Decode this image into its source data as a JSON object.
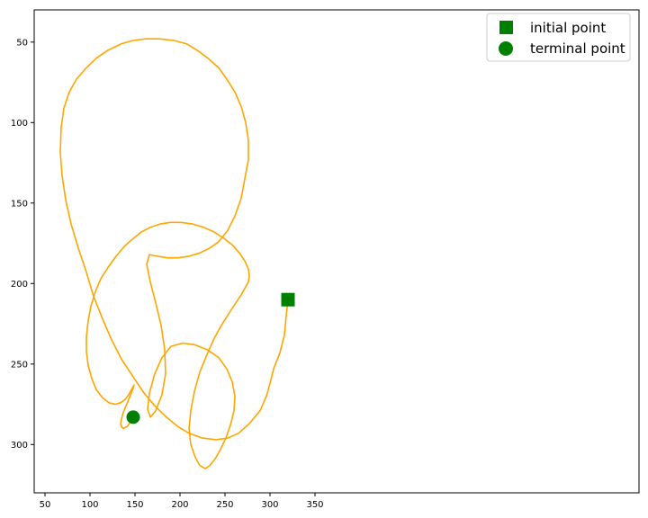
{
  "chart_data": {
    "type": "line",
    "title": "",
    "xlabel": "",
    "ylabel": "",
    "xlim": [
      38,
      710
    ],
    "ylim": [
      330,
      30
    ],
    "y_inverted": true,
    "x_ticks": [
      50,
      100,
      150,
      200,
      250,
      300,
      350
    ],
    "y_ticks": [
      50,
      100,
      150,
      200,
      250,
      300
    ],
    "grid": false,
    "legend_position": "top-right",
    "colors": {
      "trajectory": "#ffa500",
      "markers": "#008000"
    },
    "series": [
      {
        "name": "",
        "type": "line",
        "x": [
          320,
          318,
          316,
          311,
          304,
          300,
          296,
          289,
          277,
          265,
          253,
          240,
          225,
          210,
          198,
          185,
          172,
          160,
          148,
          135,
          124,
          114,
          104,
          96,
          87,
          79,
          73,
          69,
          67,
          68,
          71,
          77,
          85,
          96,
          107,
          120,
          135,
          148,
          162,
          177,
          193,
          207,
          219,
          231,
          243,
          252,
          261,
          268,
          273,
          276,
          276,
          272,
          268,
          261,
          253,
          243,
          233,
          222,
          210,
          198,
          186,
          175,
          166,
          163,
          167,
          173,
          179,
          183,
          184,
          180,
          173,
          167,
          164,
          166,
          172,
          180,
          190,
          203,
          216,
          230,
          243,
          252,
          258,
          261,
          260,
          256,
          251,
          245,
          239,
          233,
          228,
          222,
          217,
          212,
          210,
          212,
          216,
          222,
          230,
          238,
          247,
          255,
          262,
          268,
          272,
          276,
          277,
          276,
          272,
          266,
          258,
          249,
          238,
          226,
          214,
          201,
          189,
          178,
          167,
          157,
          148,
          138,
          129,
          120,
          112,
          106,
          101,
          98,
          96,
          96,
          98,
          102,
          107,
          114,
          121,
          128,
          134,
          139,
          143,
          146,
          148,
          149,
          148,
          146,
          143,
          140,
          137,
          135,
          134,
          135,
          137,
          141,
          145,
          148
        ],
        "y": [
          210,
          220,
          232,
          243,
          253,
          262,
          270,
          279,
          287,
          293,
          296,
          297,
          296,
          293,
          289,
          283,
          276,
          268,
          258,
          247,
          235,
          222,
          208,
          193,
          178,
          163,
          148,
          133,
          118,
          103,
          91,
          81,
          73,
          66,
          60,
          55,
          51,
          49,
          48,
          48,
          49,
          51,
          55,
          60,
          66,
          73,
          81,
          90,
          100,
          111,
          123,
          135,
          147,
          158,
          167,
          174,
          178,
          181,
          183,
          184,
          184,
          183,
          182,
          188,
          199,
          212,
          226,
          241,
          256,
          269,
          279,
          283,
          278,
          268,
          256,
          246,
          239,
          237,
          238,
          241,
          246,
          253,
          261,
          270,
          279,
          288,
          296,
          303,
          309,
          313,
          315,
          313,
          308,
          300,
          290,
          279,
          267,
          255,
          244,
          234,
          225,
          218,
          212,
          207,
          203,
          199,
          195,
          191,
          186,
          181,
          176,
          172,
          168,
          165,
          163,
          162,
          162,
          163,
          165,
          168,
          172,
          177,
          183,
          190,
          197,
          205,
          214,
          223,
          233,
          242,
          251,
          259,
          266,
          271,
          274,
          275,
          274,
          272,
          269,
          266,
          264,
          263,
          265,
          268,
          272,
          276,
          280,
          284,
          287,
          289,
          290,
          289,
          286,
          283
        ]
      }
    ],
    "markers": [
      {
        "label": "initial point",
        "shape": "square",
        "x": 320,
        "y": 210
      },
      {
        "label": "terminal point",
        "shape": "circle",
        "x": 148,
        "y": 283
      }
    ]
  }
}
